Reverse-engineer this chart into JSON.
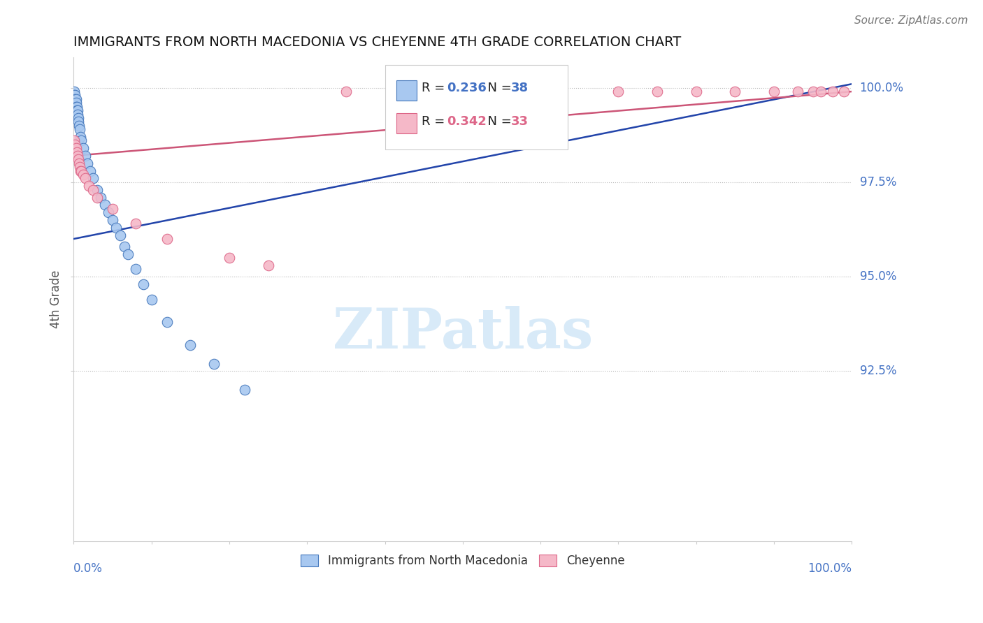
{
  "title": "IMMIGRANTS FROM NORTH MACEDONIA VS CHEYENNE 4TH GRADE CORRELATION CHART",
  "source": "Source: ZipAtlas.com",
  "ylabel": "4th Grade",
  "y_tick_vals": [
    1.0,
    0.975,
    0.95,
    0.925
  ],
  "y_tick_labels": [
    "100.0%",
    "97.5%",
    "95.0%",
    "92.5%"
  ],
  "x_lim": [
    0.0,
    1.0
  ],
  "y_lim": [
    0.88,
    1.008
  ],
  "blue_R": 0.236,
  "blue_N": 38,
  "pink_R": 0.342,
  "pink_N": 33,
  "legend_label_blue": "Immigrants from North Macedonia",
  "legend_label_pink": "Cheyenne",
  "blue_color": "#a8c8f0",
  "pink_color": "#f5b8c8",
  "blue_edge": "#4477bb",
  "pink_edge": "#dd6688",
  "blue_line_color": "#2244aa",
  "pink_line_color": "#cc5577",
  "watermark_color": "#d8eaf8",
  "title_color": "#111111",
  "axis_label_color": "#4472c4",
  "ylabel_color": "#555555",
  "source_color": "#777777",
  "blue_points_x": [
    0.001,
    0.001,
    0.002,
    0.002,
    0.003,
    0.003,
    0.003,
    0.004,
    0.004,
    0.005,
    0.005,
    0.006,
    0.006,
    0.007,
    0.008,
    0.009,
    0.01,
    0.012,
    0.015,
    0.018,
    0.021,
    0.025,
    0.03,
    0.035,
    0.04,
    0.045,
    0.05,
    0.055,
    0.06,
    0.065,
    0.07,
    0.08,
    0.09,
    0.1,
    0.12,
    0.15,
    0.18,
    0.22
  ],
  "blue_points_y": [
    0.999,
    0.998,
    0.998,
    0.997,
    0.997,
    0.996,
    0.995,
    0.995,
    0.994,
    0.994,
    0.993,
    0.992,
    0.991,
    0.99,
    0.989,
    0.987,
    0.986,
    0.984,
    0.982,
    0.98,
    0.978,
    0.976,
    0.973,
    0.971,
    0.969,
    0.967,
    0.965,
    0.963,
    0.961,
    0.958,
    0.956,
    0.952,
    0.948,
    0.944,
    0.938,
    0.932,
    0.927,
    0.92
  ],
  "pink_points_x": [
    0.001,
    0.002,
    0.003,
    0.004,
    0.005,
    0.006,
    0.007,
    0.008,
    0.009,
    0.01,
    0.012,
    0.015,
    0.02,
    0.025,
    0.03,
    0.05,
    0.08,
    0.12,
    0.2,
    0.25,
    0.35,
    0.5,
    0.6,
    0.7,
    0.75,
    0.8,
    0.85,
    0.9,
    0.93,
    0.95,
    0.96,
    0.975,
    0.99
  ],
  "pink_points_y": [
    0.986,
    0.985,
    0.984,
    0.983,
    0.982,
    0.981,
    0.98,
    0.979,
    0.978,
    0.978,
    0.977,
    0.976,
    0.974,
    0.973,
    0.971,
    0.968,
    0.964,
    0.96,
    0.955,
    0.953,
    0.999,
    0.999,
    0.999,
    0.999,
    0.999,
    0.999,
    0.999,
    0.999,
    0.999,
    0.999,
    0.999,
    0.999,
    0.999
  ],
  "blue_line_x0": 0.0,
  "blue_line_x1": 1.0,
  "blue_line_y0": 0.96,
  "blue_line_y1": 1.001,
  "pink_line_x0": 0.0,
  "pink_line_x1": 1.0,
  "pink_line_y0": 0.982,
  "pink_line_y1": 0.999
}
